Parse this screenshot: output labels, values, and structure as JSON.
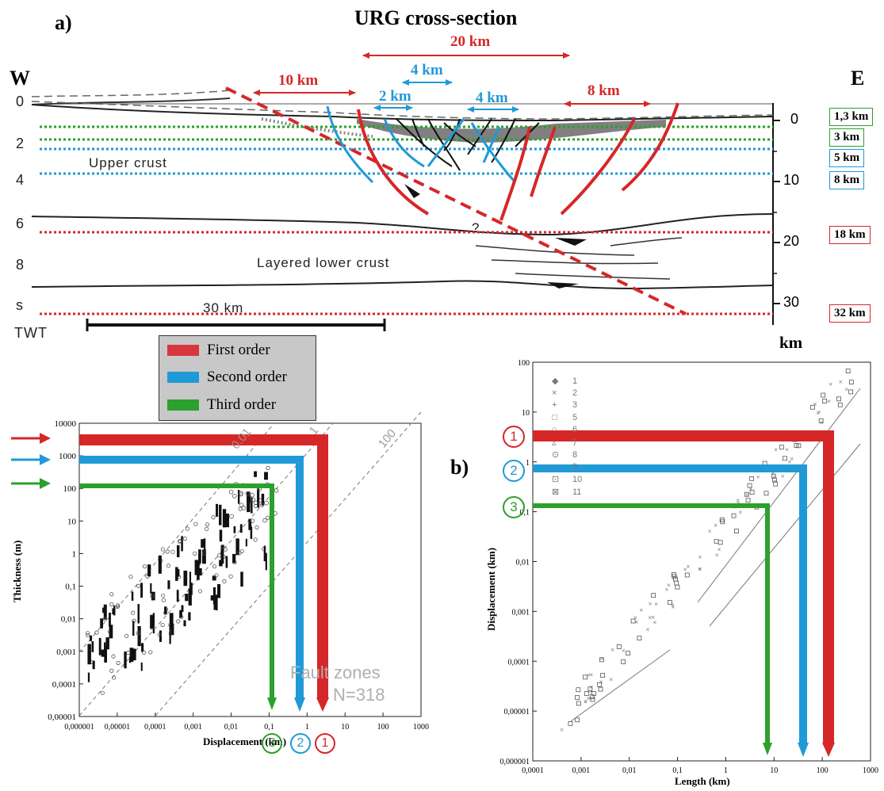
{
  "panel_a": {
    "letter": "a)",
    "title": "URG cross-section",
    "west": "W",
    "east": "E",
    "spans": {
      "total": "20 km",
      "first_left": "10 km",
      "first_right": "8 km",
      "second_a": "4 km",
      "second_b": "4 km",
      "third": "2 km"
    },
    "twt_ticks": [
      "0",
      "2",
      "4",
      "6",
      "8",
      "s"
    ],
    "twt_label": "TWT",
    "km_ticks": [
      "0",
      "10",
      "20",
      "30"
    ],
    "km_label": "km",
    "depth_boxes": [
      {
        "text": "1,3 km",
        "color": "#2ca02c"
      },
      {
        "text": "3 km",
        "color": "#2ca02c"
      },
      {
        "text": "5 km",
        "color": "#1f8fd0"
      },
      {
        "text": "8 km",
        "color": "#1f8fd0"
      },
      {
        "text": "18 km",
        "color": "#d62728"
      },
      {
        "text": "32 km",
        "color": "#d62728"
      }
    ],
    "upper_crust": "Upper  crust",
    "lower_crust": "Layered  lower  crust",
    "scale_bar": "30 km",
    "question_mark": "?"
  },
  "legend": [
    {
      "label": "First order",
      "color": "#d9363e"
    },
    {
      "label": "Second order",
      "color": "#1f9ad6"
    },
    {
      "label": "Third order",
      "color": "#2ca02c"
    }
  ],
  "plot_left": {
    "ylabel": "Thickness (m)",
    "xlabel": "Displacement (km)",
    "yticks": [
      "10000",
      "1000",
      "100",
      "10",
      "1",
      "0,1",
      "0,01",
      "0,001",
      "0,0001",
      "0,00001"
    ],
    "xticks": [
      "0,000001",
      "0,00001",
      "0,0001",
      "0,001",
      "0,01",
      "0,1",
      "1",
      "10",
      "100",
      "1000"
    ],
    "ratio_lines": [
      "0.01",
      "1",
      "100"
    ],
    "watermark": [
      "Fault zones",
      "N=318"
    ],
    "markers": [
      "3",
      "2",
      "1"
    ]
  },
  "plot_right": {
    "letter": "b)",
    "ylabel": "Displacement (km)",
    "xlabel": "Length (km)",
    "yticks": [
      "100",
      "10",
      "1",
      "0,1",
      "0,01",
      "0,001",
      "0,0001",
      "0,00001",
      "0,000001"
    ],
    "xticks": [
      "0,0001",
      "0,001",
      "0,01",
      "0,1",
      "1",
      "10",
      "100",
      "1000"
    ],
    "legend_items": [
      "1",
      "2",
      "3",
      "5",
      "6",
      "7",
      "8",
      "9",
      "10",
      "11"
    ],
    "markers": [
      "1",
      "2",
      "3"
    ]
  },
  "chart_data": [
    {
      "type": "scatter",
      "title": "",
      "xlabel": "Displacement (km)",
      "ylabel": "Thickness (m)",
      "xscale": "log",
      "yscale": "log",
      "xlim": [
        1e-06,
        1000
      ],
      "ylim": [
        1e-05,
        10000
      ],
      "annotations": [
        "Fault zones",
        "N=318"
      ],
      "order_levels": [
        {
          "order": "First order",
          "displacement_km": 3,
          "thickness_m": 3000
        },
        {
          "order": "Second order",
          "displacement_km": 0.8,
          "thickness_m": 800
        },
        {
          "order": "Third order",
          "displacement_km": 0.13,
          "thickness_m": 130
        }
      ]
    },
    {
      "type": "scatter",
      "title": "",
      "xlabel": "Length (km)",
      "ylabel": "Displacement (km)",
      "xscale": "log",
      "yscale": "log",
      "xlim": [
        0.0001,
        1000
      ],
      "ylim": [
        1e-06,
        100
      ],
      "order_levels": [
        {
          "order": "First order",
          "length_km": 130,
          "displacement_km": 3.5
        },
        {
          "order": "Second order",
          "length_km": 35,
          "displacement_km": 0.8
        },
        {
          "order": "Third order",
          "length_km": 6,
          "displacement_km": 0.12
        }
      ]
    }
  ]
}
